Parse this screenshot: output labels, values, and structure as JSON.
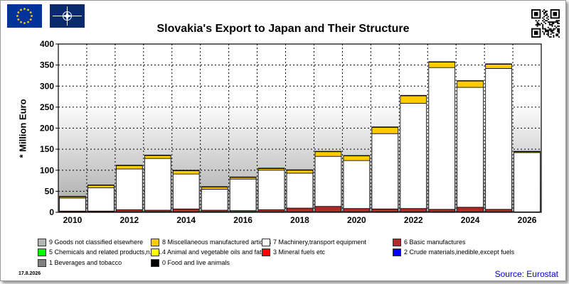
{
  "title": "Slovakia's Export to Japan and Their Structure",
  "date": "17.8.2026",
  "source": "Source: Eurostat",
  "icons": [
    "eu-flag-icon",
    "nato-flag-icon",
    "qr-code-icon"
  ],
  "chart_data": {
    "type": "bar",
    "stacked": true,
    "title": "Slovakia's Export to Japan and Their Structure",
    "ylabel": "* Million Euro",
    "xlabel": "",
    "ylim": [
      0,
      400
    ],
    "yticks": [
      0,
      50,
      100,
      150,
      200,
      250,
      300,
      350,
      400
    ],
    "grid": true,
    "legend_position": "bottom",
    "categories": [
      "2010",
      "2011",
      "2012",
      "2013",
      "2014",
      "2015",
      "2016",
      "2017",
      "2018",
      "2019",
      "2020",
      "2021",
      "2022",
      "2023",
      "2024",
      "2025",
      "2026"
    ],
    "x_tick_labels": [
      "2010",
      "",
      "2012",
      "",
      "2014",
      "",
      "2016",
      "",
      "2018",
      "",
      "2020",
      "",
      "2022",
      "",
      "2024",
      "",
      "2026"
    ],
    "series": [
      {
        "name": "0 Food and live animals",
        "color": "#000000",
        "values": [
          1,
          1,
          1,
          1,
          1,
          1,
          1,
          1,
          1,
          1,
          1,
          1,
          1,
          1,
          1,
          1,
          0
        ]
      },
      {
        "name": "1 Beverages and tobacco",
        "color": "#808080",
        "values": [
          0,
          0,
          0,
          0,
          0,
          0,
          0,
          0,
          0,
          0,
          0,
          0,
          0,
          0,
          0,
          0,
          0
        ]
      },
      {
        "name": "2 Crude materials,inedible,except fuels",
        "color": "#0000ff",
        "values": [
          0,
          0,
          0,
          0,
          0,
          0,
          0,
          0,
          0,
          0,
          0,
          0,
          0,
          0,
          0,
          0,
          0
        ]
      },
      {
        "name": "3 Mineral fuels etc",
        "color": "#ff0000",
        "values": [
          0,
          0,
          0,
          0,
          0,
          0,
          0,
          0,
          0,
          0,
          0,
          0,
          0,
          0,
          0,
          0,
          0
        ]
      },
      {
        "name": "4 Animal and vegetable oils and fats",
        "color": "#ffff00",
        "values": [
          0,
          0,
          0,
          0,
          0,
          0,
          0,
          0,
          0,
          0,
          0,
          0,
          0,
          0,
          0,
          0,
          0
        ]
      },
      {
        "name": "5 Chemicals and related products,n.e.s.",
        "color": "#00ff00",
        "values": [
          0,
          0,
          0,
          0,
          0,
          0,
          0,
          0,
          0,
          0,
          0,
          0,
          0,
          0,
          0,
          0,
          0
        ]
      },
      {
        "name": "6 Basic manufactures",
        "color": "#b02828",
        "values": [
          2,
          2,
          5,
          4,
          7,
          4,
          3,
          5,
          9,
          13,
          8,
          7,
          8,
          6,
          11,
          6,
          1
        ]
      },
      {
        "name": "7 Machinery,transport equipment",
        "color": "#ffffff",
        "values": [
          31,
          55,
          97,
          123,
          83,
          50,
          75,
          94,
          83,
          119,
          114,
          179,
          250,
          337,
          285,
          335,
          141
        ]
      },
      {
        "name": "8 Miscellaneous manufactured articles",
        "color": "#ffcc00",
        "values": [
          3,
          6,
          8,
          7,
          8,
          5,
          4,
          4,
          7,
          11,
          11,
          15,
          18,
          13,
          15,
          10,
          2
        ]
      },
      {
        "name": "9 Goods not classified elsewhere",
        "color": "#b4b4b4",
        "values": [
          1,
          1,
          1,
          1,
          1,
          1,
          1,
          1,
          1,
          1,
          1,
          1,
          1,
          1,
          1,
          1,
          1
        ]
      }
    ]
  },
  "legend_rows": [
    [
      "9 Goods not classified elsewhere",
      "8 Miscellaneous manufactured articles",
      "7 Machinery,transport equipment",
      "6 Basic manufactures"
    ],
    [
      "5 Chemicals and related products,n.e.s.",
      "4 Animal and vegetable oils and fats",
      "3 Mineral fuels etc",
      "2 Crude materials,inedible,except fuels"
    ],
    [
      "1 Beverages and tobacco",
      "0 Food and live animals"
    ]
  ]
}
